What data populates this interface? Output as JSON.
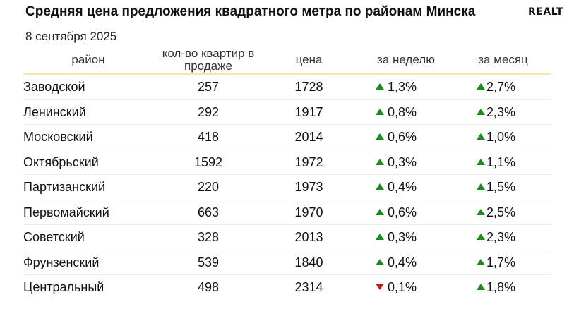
{
  "header": {
    "title": "Средняя цена предложения квадратного метра по районам Минска",
    "logo": "REALT",
    "date": "8 сентября 2025"
  },
  "colors": {
    "up": "#1f8a1f",
    "down": "#c21a1a",
    "accent_line": "#fbe7a0"
  },
  "chart_data": {
    "type": "table",
    "title": "Средняя цена предложения квадратного метра по районам Минска",
    "subtitle": "8 сентября 2025",
    "columns": [
      "район",
      "кол-во квартир в продаже",
      "цена",
      "за неделю",
      "за месяц"
    ],
    "rows": [
      {
        "district": "Заводской",
        "count": "257",
        "price": "1728",
        "week": "1,3%",
        "week_dir": "up",
        "month": "2,7%",
        "month_dir": "up"
      },
      {
        "district": "Ленинский",
        "count": "292",
        "price": "1917",
        "week": "0,8%",
        "week_dir": "up",
        "month": "2,3%",
        "month_dir": "up"
      },
      {
        "district": "Московский",
        "count": "418",
        "price": "2014",
        "week": "0,6%",
        "week_dir": "up",
        "month": "1,0%",
        "month_dir": "up"
      },
      {
        "district": "Октябрьский",
        "count": "1592",
        "price": "1972",
        "week": "0,3%",
        "week_dir": "up",
        "month": "1,1%",
        "month_dir": "up"
      },
      {
        "district": "Партизанский",
        "count": "220",
        "price": "1973",
        "week": "0,4%",
        "week_dir": "up",
        "month": "1,5%",
        "month_dir": "up"
      },
      {
        "district": "Первомайский",
        "count": "663",
        "price": "1970",
        "week": "0,6%",
        "week_dir": "up",
        "month": "2,5%",
        "month_dir": "up"
      },
      {
        "district": "Советский",
        "count": "328",
        "price": "2013",
        "week": "0,3%",
        "week_dir": "up",
        "month": "2,3%",
        "month_dir": "up"
      },
      {
        "district": "Фрунзенский",
        "count": "539",
        "price": "1840",
        "week": "0,4%",
        "week_dir": "up",
        "month": "1,7%",
        "month_dir": "up"
      },
      {
        "district": "Центральный",
        "count": "498",
        "price": "2314",
        "week": "0,1%",
        "week_dir": "down",
        "month": "1,8%",
        "month_dir": "up"
      }
    ]
  }
}
